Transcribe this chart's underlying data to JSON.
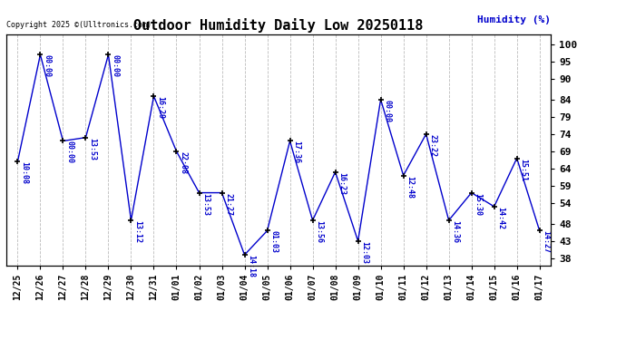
{
  "title": "Outdoor Humidity Daily Low 20250118",
  "ylabel": "Humidity (%)",
  "copyright": "Copyright 2025 ©(Ulltronics.com)",
  "line_color": "#0000cc",
  "background_color": "#ffffff",
  "grid_color": "#bbbbbb",
  "yticks": [
    38,
    43,
    48,
    54,
    59,
    64,
    69,
    74,
    79,
    84,
    90,
    95,
    100
  ],
  "xlabels": [
    "12/25",
    "12/26",
    "12/27",
    "12/28",
    "12/29",
    "12/30",
    "12/31",
    "01/01",
    "01/02",
    "01/03",
    "01/04",
    "01/05",
    "01/06",
    "01/07",
    "01/08",
    "01/09",
    "01/10",
    "01/11",
    "01/12",
    "01/13",
    "01/14",
    "01/15",
    "01/16",
    "01/17"
  ],
  "yvalues": [
    66,
    97,
    72,
    73,
    97,
    49,
    85,
    69,
    57,
    57,
    39,
    46,
    72,
    49,
    63,
    43,
    84,
    62,
    74,
    49,
    57,
    53,
    67,
    46
  ],
  "time_labels": [
    "10:08",
    "00:00",
    "00:00",
    "13:53",
    "00:00",
    "13:12",
    "16:29",
    "22:08",
    "13:53",
    "21:27",
    "14:18",
    "01:03",
    "17:36",
    "13:56",
    "16:23",
    "12:03",
    "00:00",
    "12:48",
    "23:22",
    "14:36",
    "15:30",
    "14:42",
    "15:51",
    "14:27"
  ]
}
